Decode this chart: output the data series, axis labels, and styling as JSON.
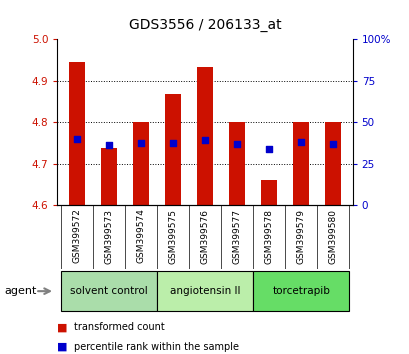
{
  "title": "GDS3556 / 206133_at",
  "samples": [
    "GSM399572",
    "GSM399573",
    "GSM399574",
    "GSM399575",
    "GSM399576",
    "GSM399577",
    "GSM399578",
    "GSM399579",
    "GSM399580"
  ],
  "bar_heights": [
    4.945,
    4.738,
    4.8,
    4.868,
    4.932,
    4.8,
    4.66,
    4.8,
    4.8
  ],
  "blue_dot_values": [
    4.76,
    4.745,
    4.75,
    4.75,
    4.756,
    4.748,
    4.735,
    4.752,
    4.748
  ],
  "y_min": 4.6,
  "y_max": 5.0,
  "y_ticks": [
    4.6,
    4.7,
    4.8,
    4.9,
    5.0
  ],
  "y2_ticks": [
    0,
    25,
    50,
    75,
    100
  ],
  "y2_labels": [
    "0",
    "25",
    "50",
    "75",
    "100%"
  ],
  "bar_color": "#cc1100",
  "dot_color": "#0000cc",
  "groups": [
    {
      "label": "solvent control",
      "indices": [
        0,
        1,
        2
      ],
      "color": "#aaddaa"
    },
    {
      "label": "angiotensin II",
      "indices": [
        3,
        4,
        5
      ],
      "color": "#bbeeaa"
    },
    {
      "label": "torcetrapib",
      "indices": [
        6,
        7,
        8
      ],
      "color": "#66dd66"
    }
  ],
  "agent_label": "agent",
  "legend_items": [
    {
      "label": "transformed count",
      "color": "#cc1100"
    },
    {
      "label": "percentile rank within the sample",
      "color": "#0000cc"
    }
  ],
  "grid_color": "#000000",
  "bg_color": "#ffffff",
  "plot_bg": "#ffffff",
  "tick_label_color_left": "#cc1100",
  "tick_label_color_right": "#0000cc",
  "bar_width": 0.5,
  "sample_label_bg": "#cccccc",
  "group1_color": "#aaddaa",
  "group2_color": "#bbeeaa",
  "group3_color": "#66dd66"
}
